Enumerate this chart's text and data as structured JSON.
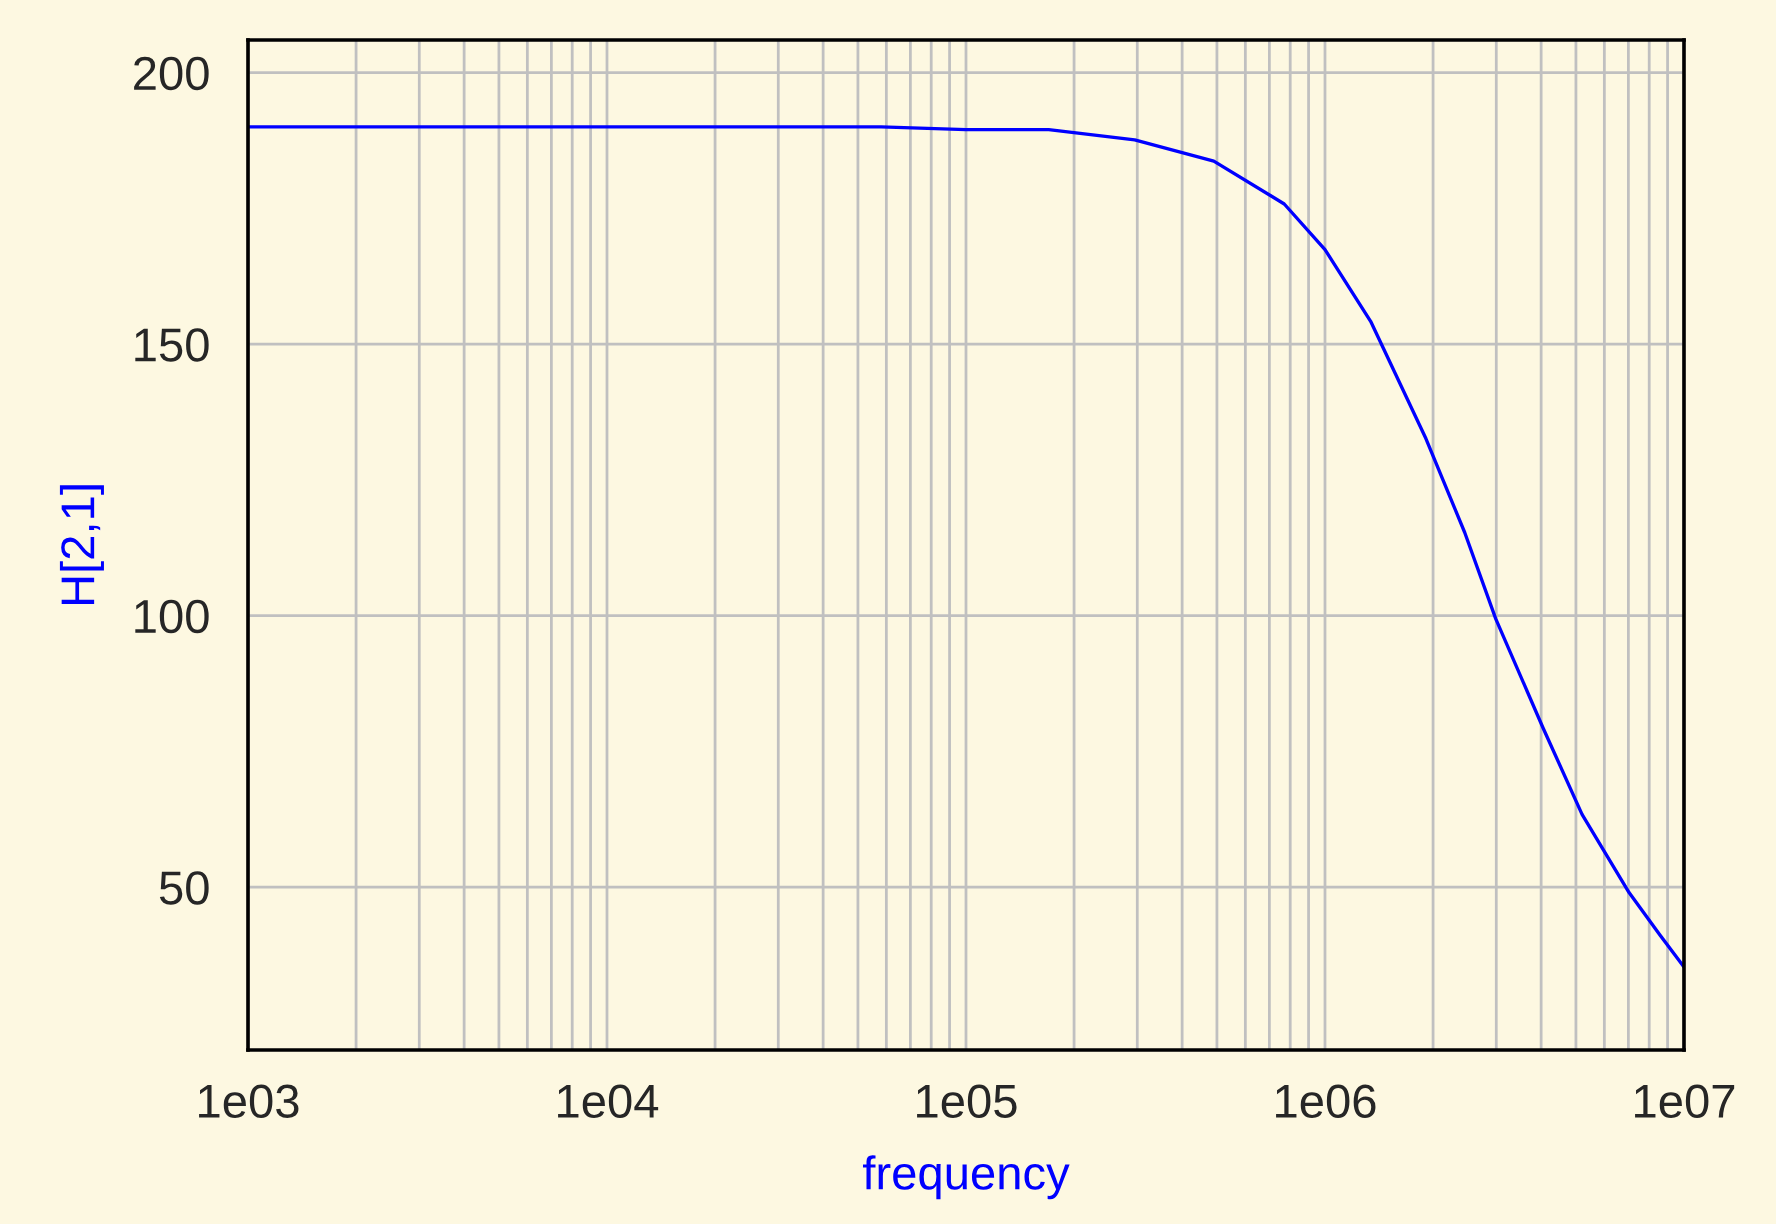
{
  "chart_data": {
    "type": "line",
    "xlabel": "frequency",
    "ylabel": "H[2,1]",
    "log": "x",
    "grid": true,
    "marker": "none",
    "line_style": "solid",
    "series": [
      {
        "color": "#0000ff",
        "x": [
          1000,
          10000,
          58000,
          100000,
          170000,
          295000,
          490000,
          770000,
          1000000,
          1340000,
          1910000,
          2450000,
          2990000,
          4050000,
          5200000,
          7030000,
          8590000,
          10000000
        ],
        "values": [
          190,
          190,
          190,
          189.5,
          189.5,
          187.6,
          183.7,
          175.8,
          167.4,
          154.2,
          132.6,
          115.3,
          99.4,
          79.3,
          63.4,
          49,
          41.1,
          35.3
        ]
      }
    ],
    "xlim": [
      1000,
      10000000
    ],
    "ylim": [
      20,
      206
    ],
    "xticks": [
      {
        "value": 1000,
        "label": "1e03"
      },
      {
        "value": 10000,
        "label": "1e04"
      },
      {
        "value": 100000,
        "label": "1e05"
      },
      {
        "value": 1000000,
        "label": "1e06"
      },
      {
        "value": 10000000,
        "label": "1e07"
      }
    ],
    "yticks": [
      50,
      100,
      150,
      200
    ]
  }
}
